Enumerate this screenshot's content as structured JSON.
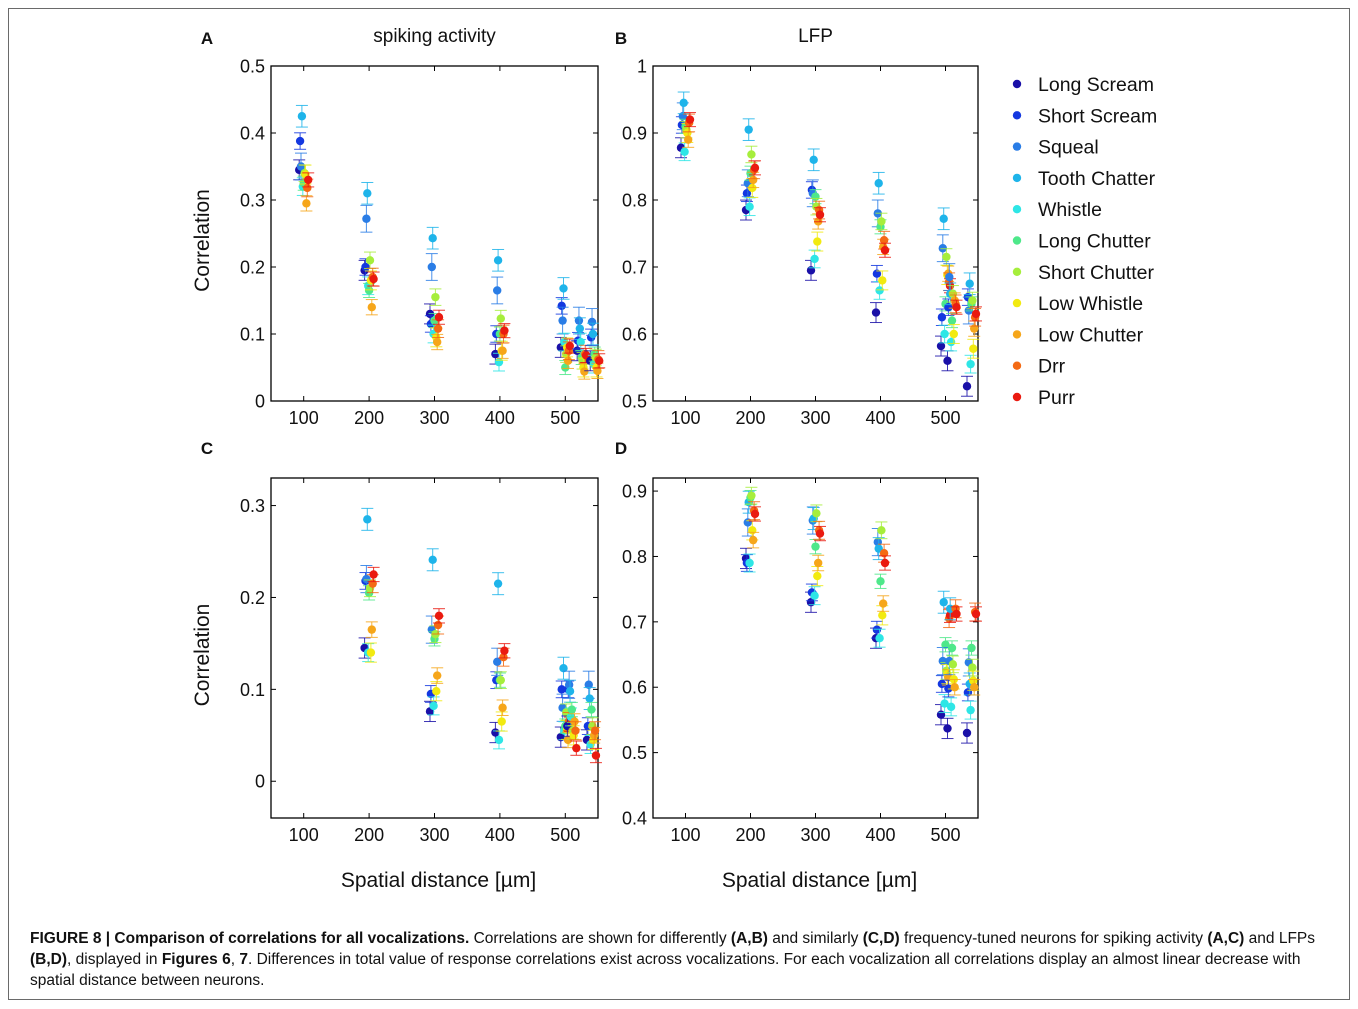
{
  "figure": {
    "caption": {
      "figure_label": "FIGURE 8 | Comparison of correlations for all vocalizations.",
      "segments": [
        {
          "text": " Correlations are shown for differently ",
          "bold": false
        },
        {
          "text": "(A,B)",
          "bold": true
        },
        {
          "text": " and similarly ",
          "bold": false
        },
        {
          "text": "(C,D)",
          "bold": true
        },
        {
          "text": " frequency-tuned neurons for spiking activity ",
          "bold": false
        },
        {
          "text": "(A,C)",
          "bold": true
        },
        {
          "text": " and LFPs ",
          "bold": false
        },
        {
          "text": "(B,D)",
          "bold": true
        },
        {
          "text": ", displayed in ",
          "bold": false
        },
        {
          "text": "Figures 6",
          "bold": true
        },
        {
          "text": ", ",
          "bold": false
        },
        {
          "text": "7",
          "bold": true
        },
        {
          "text": ". Differences in total value of response correlations exist across vocalizations. For each vocalization all correlations display an almost linear decrease with spatial distance between neurons.",
          "bold": false
        }
      ]
    },
    "shared": {
      "xlabel": "Spatial distance [µm]",
      "ylabel": "Correlation",
      "xticks": [
        100,
        200,
        300,
        400,
        500
      ]
    },
    "legend": [
      {
        "name": "Long Scream",
        "color": "#1a10a8"
      },
      {
        "name": "Short Scream",
        "color": "#1438e0"
      },
      {
        "name": "Squeal",
        "color": "#2a7de6"
      },
      {
        "name": "Tooth Chatter",
        "color": "#1eb4ea"
      },
      {
        "name": "Whistle",
        "color": "#2ee6e6"
      },
      {
        "name": "Long Chutter",
        "color": "#4ee88a"
      },
      {
        "name": "Short Chutter",
        "color": "#a6ee3c"
      },
      {
        "name": "Low Whistle",
        "color": "#f2ea10"
      },
      {
        "name": "Low Chutter",
        "color": "#f6a61a"
      },
      {
        "name": "Drr",
        "color": "#f46a14"
      },
      {
        "name": "Purr",
        "color": "#ea1a10"
      }
    ]
  },
  "chart_data": [
    {
      "panel": "A",
      "type": "scatter",
      "title": "spiking activity",
      "ylim": [
        0,
        0.5
      ],
      "yticks": [
        0,
        0.1,
        0.2,
        0.3,
        0.4,
        0.5
      ],
      "yticklabels": [
        "0",
        "0.1",
        "0.2",
        "0.3",
        "0.4",
        "0.5"
      ],
      "xlabel": "",
      "ylabel": "Correlation",
      "groups": [
        {
          "x": 100,
          "values": [
            0.345,
            0.388,
            0.35,
            0.425,
            0.32,
            0.325,
            0.34,
            0.338,
            0.295,
            0.318,
            0.33
          ]
        },
        {
          "x": 200,
          "values": [
            0.195,
            0.2,
            0.272,
            0.31,
            0.172,
            0.165,
            0.21,
            0.18,
            0.14,
            0.185,
            0.182
          ]
        },
        {
          "x": 300,
          "values": [
            0.13,
            0.115,
            0.2,
            0.243,
            0.1,
            0.12,
            0.155,
            0.095,
            0.088,
            0.108,
            0.125
          ]
        },
        {
          "x": 400,
          "values": [
            0.07,
            0.1,
            0.165,
            0.21,
            0.058,
            0.1,
            0.123,
            0.075,
            0.075,
            0.1,
            0.105
          ]
        },
        {
          "x": 500,
          "values": [
            0.08,
            0.142,
            0.12,
            0.168,
            0.088,
            0.05,
            0.07,
            0.08,
            0.06,
            0.075,
            0.082
          ]
        },
        {
          "x": 525,
          "values": [
            0.075,
            0.09,
            0.12,
            0.108,
            0.088,
            0.065,
            0.06,
            0.05,
            0.044,
            0.07,
            0.068
          ]
        },
        {
          "x": 545,
          "values": [
            0.06,
            0.095,
            0.118,
            0.1,
            0.055,
            0.07,
            0.065,
            0.05,
            0.045,
            0.062,
            0.06
          ]
        }
      ]
    },
    {
      "panel": "B",
      "type": "scatter",
      "title": "LFP",
      "ylim": [
        0.5,
        1
      ],
      "yticks": [
        0.5,
        0.6,
        0.7,
        0.8,
        0.9,
        1
      ],
      "yticklabels": [
        "0.5",
        "0.6",
        "0.7",
        "0.8",
        "0.9",
        "1"
      ],
      "xlabel": "",
      "ylabel": "",
      "groups": [
        {
          "x": 100,
          "values": [
            0.878,
            0.912,
            0.925,
            0.945,
            0.872,
            0.91,
            0.905,
            0.9,
            0.89,
            0.915,
            0.92
          ]
        },
        {
          "x": 200,
          "values": [
            0.785,
            0.81,
            0.825,
            0.905,
            0.79,
            0.84,
            0.868,
            0.818,
            0.83,
            0.845,
            0.848
          ]
        },
        {
          "x": 300,
          "values": [
            0.695,
            0.815,
            0.81,
            0.86,
            0.712,
            0.805,
            0.79,
            0.738,
            0.768,
            0.785,
            0.778
          ]
        },
        {
          "x": 400,
          "values": [
            0.632,
            0.69,
            0.78,
            0.825,
            0.665,
            0.76,
            0.768,
            0.68,
            0.73,
            0.74,
            0.725
          ]
        },
        {
          "x": 500,
          "values": [
            0.582,
            0.625,
            0.728,
            0.772,
            0.6,
            0.645,
            0.715,
            0.688,
            0.69,
            0.678,
            0.672
          ]
        },
        {
          "x": 510,
          "values": [
            0.56,
            0.64,
            0.685,
            0.66,
            0.588,
            0.62,
            0.66,
            0.6,
            0.65,
            0.645,
            0.64
          ]
        },
        {
          "x": 540,
          "values": [
            0.522,
            0.655,
            0.635,
            0.675,
            0.555,
            0.645,
            0.65,
            0.578,
            0.608,
            0.625,
            0.63
          ]
        }
      ]
    },
    {
      "panel": "C",
      "type": "scatter",
      "title": "",
      "ylim": [
        -0.04,
        0.33
      ],
      "yticks": [
        0,
        0.1,
        0.2,
        0.3
      ],
      "yticklabels": [
        "0",
        "0.1",
        "0.2",
        "0.3"
      ],
      "xlabel": "Spatial distance [µm]",
      "ylabel": "Correlation",
      "groups": [
        {
          "x": 200,
          "values": [
            0.145,
            0.218,
            0.22,
            0.285,
            0.14,
            0.205,
            0.21,
            0.14,
            0.165,
            0.215,
            0.225
          ]
        },
        {
          "x": 300,
          "values": [
            0.076,
            0.095,
            0.165,
            0.241,
            0.082,
            0.155,
            0.16,
            0.098,
            0.115,
            0.17,
            0.18
          ]
        },
        {
          "x": 400,
          "values": [
            0.053,
            0.11,
            0.13,
            0.215,
            0.045,
            0.11,
            0.11,
            0.065,
            0.08,
            0.135,
            0.142
          ]
        },
        {
          "x": 500,
          "values": [
            0.048,
            0.1,
            0.08,
            0.123,
            0.055,
            0.06,
            0.075,
            0.056,
            0.045,
            0.065,
            0.062
          ]
        },
        {
          "x": 510,
          "values": [
            0.06,
            0.1,
            0.105,
            0.098,
            0.07,
            0.078,
            0.055,
            0.05,
            0.065,
            0.055,
            0.036
          ]
        },
        {
          "x": 540,
          "values": [
            0.045,
            0.06,
            0.105,
            0.09,
            0.04,
            0.078,
            0.06,
            0.045,
            0.05,
            0.055,
            0.028
          ]
        }
      ]
    },
    {
      "panel": "D",
      "type": "scatter",
      "title": "",
      "ylim": [
        0.4,
        0.92
      ],
      "yticks": [
        0.4,
        0.5,
        0.6,
        0.7,
        0.8,
        0.9
      ],
      "yticklabels": [
        "0.4",
        "0.5",
        "0.6",
        "0.7",
        "0.8",
        "0.9"
      ],
      "xlabel": "Spatial distance [µm]",
      "ylabel": "",
      "groups": [
        {
          "x": 200,
          "values": [
            0.797,
            0.79,
            0.852,
            0.883,
            0.79,
            0.89,
            0.893,
            0.84,
            0.825,
            0.87,
            0.865
          ]
        },
        {
          "x": 300,
          "values": [
            0.73,
            0.745,
            0.855,
            0.858,
            0.74,
            0.815,
            0.866,
            0.77,
            0.79,
            0.84,
            0.835
          ]
        },
        {
          "x": 400,
          "values": [
            0.675,
            0.688,
            0.822,
            0.812,
            0.675,
            0.762,
            0.84,
            0.71,
            0.728,
            0.805,
            0.79
          ]
        },
        {
          "x": 500,
          "values": [
            0.558,
            0.605,
            0.64,
            0.73,
            0.575,
            0.665,
            0.625,
            0.62,
            0.615,
            0.705,
            0.71
          ]
        },
        {
          "x": 510,
          "values": [
            0.537,
            0.598,
            0.64,
            0.72,
            0.57,
            0.66,
            0.635,
            0.612,
            0.6,
            0.72,
            0.712
          ]
        },
        {
          "x": 540,
          "values": [
            0.53,
            0.592,
            0.638,
            0.605,
            0.565,
            0.66,
            0.63,
            0.61,
            0.6,
            0.715,
            0.712
          ]
        }
      ]
    }
  ]
}
